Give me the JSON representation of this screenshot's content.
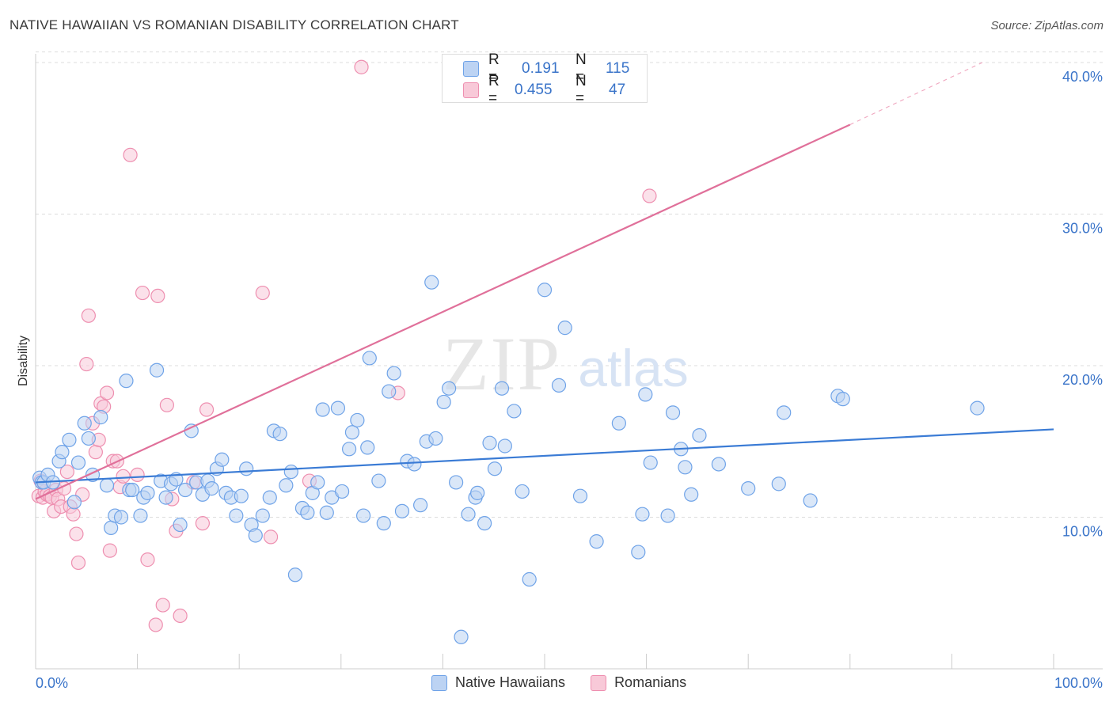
{
  "header": {
    "title": "NATIVE HAWAIIAN VS ROMANIAN DISABILITY CORRELATION CHART",
    "source": "Source: ZipAtlas.com"
  },
  "watermark": {
    "zip": "ZIP",
    "atlas": "atlas"
  },
  "stats": {
    "r_label": "R =",
    "n_label": "N =",
    "rows": [
      {
        "r": "0.191",
        "n": "115",
        "color": "#6fa3e8",
        "fill": "#bcd3f3"
      },
      {
        "r": "0.455",
        "n": "47",
        "color": "#ee8fb0",
        "fill": "#f8c9d8"
      }
    ]
  },
  "legend": {
    "items": [
      {
        "label": "Native Hawaiians",
        "color": "#6fa3e8",
        "fill": "#bcd3f3"
      },
      {
        "label": "Romanians",
        "color": "#ee8fb0",
        "fill": "#f8c9d8"
      }
    ]
  },
  "chart_data": {
    "type": "scatter",
    "title": "NATIVE HAWAIIAN VS ROMANIAN DISABILITY CORRELATION CHART",
    "xlabel": "",
    "ylabel": "Disability",
    "xlim": [
      0,
      100
    ],
    "ylim": [
      0,
      42
    ],
    "x_tick_labels": [
      "0.0%",
      "100.0%"
    ],
    "y_ticks": [
      10,
      20,
      30,
      40
    ],
    "y_tick_labels": [
      "10.0%",
      "20.0%",
      "30.0%",
      "40.0%"
    ],
    "grid": "horizontal dashed",
    "legend_position": "bottom",
    "series": [
      {
        "name": "Native Hawaiians",
        "color": "#3a7bd5",
        "fill": "#bcd3f3",
        "edge": "#6fa3e8",
        "trend": {
          "x": [
            0,
            100
          ],
          "y": [
            12.3,
            15.8
          ]
        },
        "points": [
          [
            0.4,
            12.6
          ],
          [
            0.6,
            12.3
          ],
          [
            0.8,
            12.3
          ],
          [
            1.2,
            12.8
          ],
          [
            1.7,
            12.3
          ],
          [
            2.3,
            13.7
          ],
          [
            2.6,
            14.3
          ],
          [
            3.3,
            15.1
          ],
          [
            3.8,
            11.0
          ],
          [
            4.2,
            13.6
          ],
          [
            4.8,
            16.2
          ],
          [
            5.2,
            15.2
          ],
          [
            5.6,
            12.8
          ],
          [
            6.4,
            16.6
          ],
          [
            7.0,
            12.1
          ],
          [
            7.4,
            9.3
          ],
          [
            7.8,
            10.1
          ],
          [
            8.4,
            10.0
          ],
          [
            8.9,
            19.0
          ],
          [
            9.2,
            11.8
          ],
          [
            9.5,
            11.8
          ],
          [
            10.3,
            10.1
          ],
          [
            10.6,
            11.3
          ],
          [
            11.0,
            11.6
          ],
          [
            11.9,
            19.7
          ],
          [
            12.3,
            12.4
          ],
          [
            12.8,
            11.3
          ],
          [
            13.3,
            12.2
          ],
          [
            13.8,
            12.5
          ],
          [
            14.2,
            9.5
          ],
          [
            14.7,
            11.8
          ],
          [
            15.3,
            15.7
          ],
          [
            15.8,
            12.3
          ],
          [
            16.4,
            11.5
          ],
          [
            16.9,
            12.4
          ],
          [
            17.3,
            11.9
          ],
          [
            17.8,
            13.2
          ],
          [
            18.3,
            13.8
          ],
          [
            18.7,
            11.6
          ],
          [
            19.2,
            11.3
          ],
          [
            19.7,
            10.1
          ],
          [
            20.2,
            11.4
          ],
          [
            20.7,
            13.2
          ],
          [
            21.2,
            9.5
          ],
          [
            21.6,
            8.8
          ],
          [
            22.3,
            10.1
          ],
          [
            23.0,
            11.3
          ],
          [
            23.4,
            15.7
          ],
          [
            24.0,
            15.5
          ],
          [
            24.6,
            12.1
          ],
          [
            25.1,
            13.0
          ],
          [
            25.5,
            6.2
          ],
          [
            26.2,
            10.6
          ],
          [
            26.7,
            10.3
          ],
          [
            27.2,
            11.6
          ],
          [
            27.7,
            12.3
          ],
          [
            28.2,
            17.1
          ],
          [
            28.6,
            10.3
          ],
          [
            29.1,
            11.3
          ],
          [
            29.7,
            17.2
          ],
          [
            30.1,
            11.7
          ],
          [
            30.8,
            14.5
          ],
          [
            31.1,
            15.6
          ],
          [
            31.6,
            16.4
          ],
          [
            32.2,
            10.1
          ],
          [
            32.6,
            14.6
          ],
          [
            32.8,
            20.5
          ],
          [
            33.7,
            12.4
          ],
          [
            34.2,
            9.6
          ],
          [
            34.7,
            18.3
          ],
          [
            35.2,
            19.5
          ],
          [
            36.0,
            10.4
          ],
          [
            36.5,
            13.7
          ],
          [
            37.2,
            13.5
          ],
          [
            37.8,
            10.8
          ],
          [
            38.4,
            15.0
          ],
          [
            38.9,
            25.5
          ],
          [
            39.3,
            15.2
          ],
          [
            40.1,
            17.6
          ],
          [
            40.6,
            18.5
          ],
          [
            41.3,
            12.3
          ],
          [
            41.8,
            2.1
          ],
          [
            42.5,
            10.2
          ],
          [
            43.2,
            11.3
          ],
          [
            43.4,
            11.6
          ],
          [
            44.1,
            9.6
          ],
          [
            44.6,
            14.9
          ],
          [
            45.1,
            13.2
          ],
          [
            45.8,
            18.5
          ],
          [
            46.1,
            14.7
          ],
          [
            47.0,
            17.0
          ],
          [
            47.8,
            11.7
          ],
          [
            48.5,
            5.9
          ],
          [
            50.0,
            25.0
          ],
          [
            51.4,
            18.7
          ],
          [
            52.0,
            22.5
          ],
          [
            53.5,
            11.4
          ],
          [
            55.1,
            8.4
          ],
          [
            57.3,
            16.2
          ],
          [
            59.2,
            7.7
          ],
          [
            59.6,
            10.2
          ],
          [
            59.9,
            18.1
          ],
          [
            60.4,
            13.6
          ],
          [
            62.1,
            10.1
          ],
          [
            62.6,
            16.9
          ],
          [
            63.4,
            14.5
          ],
          [
            63.8,
            13.3
          ],
          [
            64.4,
            11.5
          ],
          [
            65.2,
            15.4
          ],
          [
            67.1,
            13.5
          ],
          [
            70.0,
            11.9
          ],
          [
            73.0,
            12.2
          ],
          [
            73.5,
            16.9
          ],
          [
            76.1,
            11.1
          ],
          [
            78.8,
            18.0
          ],
          [
            79.3,
            17.8
          ],
          [
            92.5,
            17.2
          ]
        ]
      },
      {
        "name": "Romanians",
        "color": "#e0709a",
        "fill": "#f8c9d8",
        "edge": "#ee8fb0",
        "trend": {
          "x": [
            0,
            80
          ],
          "y": [
            11.2,
            35.9
          ]
        },
        "trend_dashed": {
          "x": [
            80,
            93
          ],
          "y": [
            35.9,
            40.0
          ]
        },
        "points": [
          [
            0.3,
            11.4
          ],
          [
            0.5,
            12.4
          ],
          [
            0.7,
            11.3
          ],
          [
            0.9,
            11.7
          ],
          [
            1.1,
            11.5
          ],
          [
            1.4,
            11.4
          ],
          [
            1.6,
            11.3
          ],
          [
            1.8,
            10.4
          ],
          [
            2.0,
            11.8
          ],
          [
            2.2,
            11.2
          ],
          [
            2.5,
            10.7
          ],
          [
            2.8,
            11.9
          ],
          [
            3.1,
            13.0
          ],
          [
            3.4,
            10.7
          ],
          [
            3.7,
            10.2
          ],
          [
            4.0,
            8.9
          ],
          [
            4.2,
            7.0
          ],
          [
            4.6,
            11.5
          ],
          [
            5.0,
            20.1
          ],
          [
            5.2,
            23.3
          ],
          [
            5.6,
            16.2
          ],
          [
            5.9,
            14.3
          ],
          [
            6.2,
            15.1
          ],
          [
            6.4,
            17.5
          ],
          [
            6.7,
            17.3
          ],
          [
            7.0,
            18.2
          ],
          [
            7.3,
            7.8
          ],
          [
            7.6,
            13.7
          ],
          [
            8.0,
            13.7
          ],
          [
            8.3,
            12.0
          ],
          [
            9.3,
            33.9
          ],
          [
            10.0,
            12.8
          ],
          [
            10.5,
            24.8
          ],
          [
            11.0,
            7.2
          ],
          [
            12.0,
            24.6
          ],
          [
            12.5,
            4.2
          ],
          [
            12.9,
            17.4
          ],
          [
            13.4,
            11.2
          ],
          [
            13.8,
            9.1
          ],
          [
            14.2,
            3.5
          ],
          [
            15.5,
            12.3
          ],
          [
            16.4,
            9.6
          ],
          [
            16.8,
            17.1
          ],
          [
            22.3,
            24.8
          ],
          [
            23.1,
            8.7
          ],
          [
            26.9,
            12.4
          ],
          [
            32.0,
            39.7
          ],
          [
            35.6,
            18.2
          ],
          [
            60.3,
            31.2
          ],
          [
            11.8,
            2.9
          ],
          [
            8.6,
            12.7
          ]
        ]
      }
    ]
  }
}
